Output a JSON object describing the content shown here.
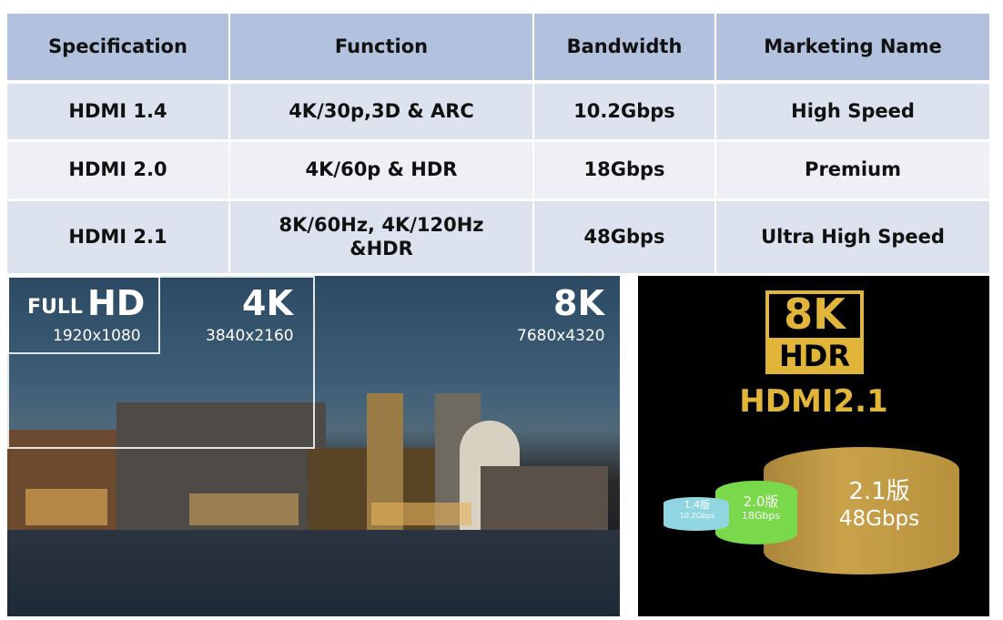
{
  "table": {
    "headers": [
      "Specification",
      "Function",
      "Bandwidth",
      "Marketing  Name"
    ],
    "rows": [
      [
        "HDMI 1.4",
        "4K/30p,3D & ARC",
        "10.2Gbps",
        "High Speed"
      ],
      [
        "HDMI 2.0",
        "4K/60p & HDR",
        "18Gbps",
        "Premium"
      ],
      [
        "HDMI 2.1",
        "8K/60Hz, 4K/120Hz &HDR",
        "48Gbps",
        "Ultra High Speed"
      ]
    ]
  },
  "resolution_image": {
    "full_hd_label": "FULL",
    "full_hd_big": "HD",
    "full_hd_res": "1920x1080",
    "k4_label": "4K",
    "k4_res": "3840x2160",
    "k8_label": "8K",
    "k8_res": "7680x4320"
  },
  "hdmi_image": {
    "logo_top": "8K",
    "logo_bottom": "HDR",
    "title": "HDMI2.1",
    "cables": [
      {
        "version": "1.4版",
        "bandwidth": "10.2Gbps",
        "color": "#8fd6e0"
      },
      {
        "version": "2.0版",
        "bandwidth": "18Gbps",
        "color": "#7ad94a"
      },
      {
        "version": "2.1版",
        "bandwidth": "48Gbps",
        "color": "#c9a24a"
      }
    ]
  }
}
